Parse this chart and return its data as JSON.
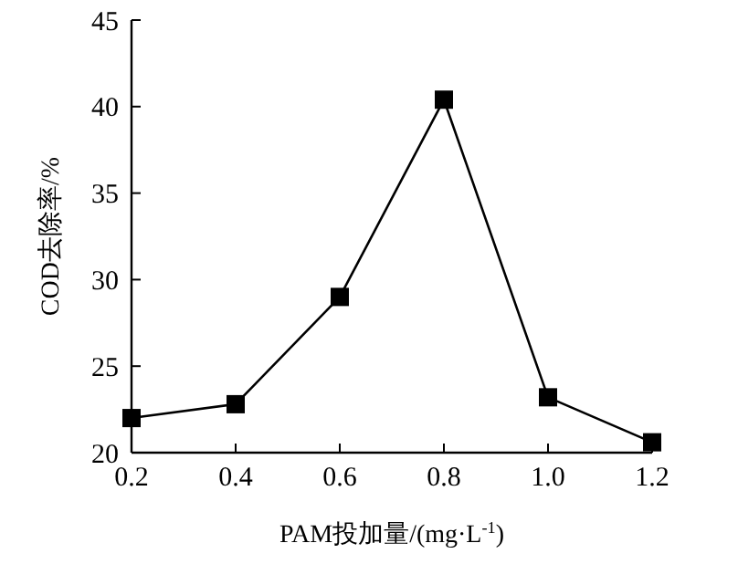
{
  "chart_data": {
    "type": "line",
    "xlabel": "PAM投加量/(mg·L$^{-1}$)",
    "ylabel": "COD去除率/%",
    "x": [
      0.2,
      0.4,
      0.6,
      0.8,
      1.0,
      1.2
    ],
    "series": [
      {
        "color": "#000000",
        "values": [
          22.0,
          22.8,
          29.0,
          40.4,
          23.2,
          20.6
        ]
      }
    ],
    "xlim": [
      0.2,
      1.2
    ],
    "xticks": [
      0.2,
      0.4,
      0.6,
      0.8,
      {
        "value": 1.0,
        "label": "1.0"
      },
      1.2
    ],
    "ylim": [
      20,
      45
    ],
    "yticks": [
      20,
      25,
      30,
      35,
      40,
      45
    ],
    "marker": "square",
    "line_style": "solid"
  }
}
